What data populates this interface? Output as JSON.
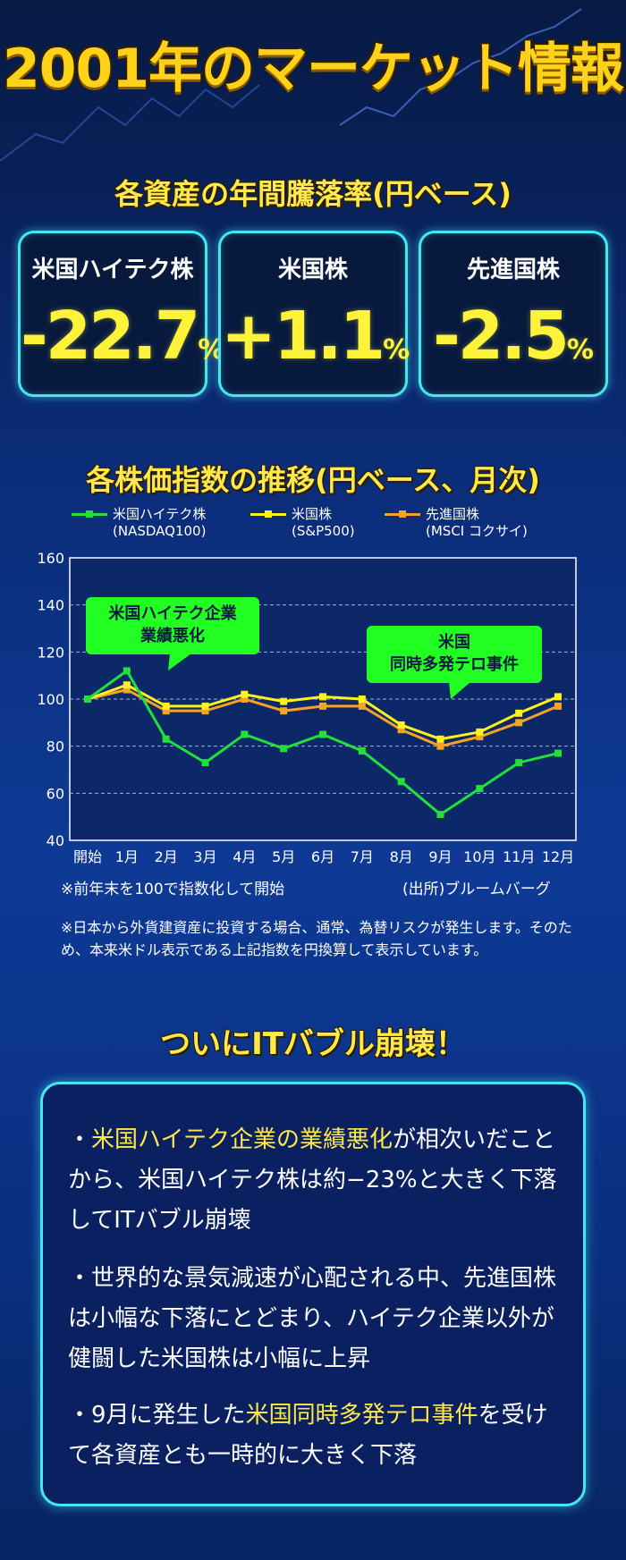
{
  "page": {
    "main_title": "2001年のマーケット情報",
    "section1_title": "各資産の年間騰落率(円ベース)",
    "section2_title": "各株価指数の推移(円ベース、月次)",
    "section3_title": "ついにITバブル崩壊！"
  },
  "cards": [
    {
      "label": "米国ハイテク株",
      "value": "-22.7",
      "unit": "%"
    },
    {
      "label": "米国株",
      "value": "+1.1",
      "unit": "%"
    },
    {
      "label": "先進国株",
      "value": "-2.5",
      "unit": "%"
    }
  ],
  "colors": {
    "hitech": "#22e03a",
    "us": "#fff21a",
    "developed": "#f5a323",
    "accent": "#45e6f0",
    "title": "#ffe94a"
  },
  "legend": [
    {
      "name": "米国ハイテク株",
      "sub": "(NASDAQ100)"
    },
    {
      "name": "米国株",
      "sub": "(S&P500)"
    },
    {
      "name": "先進国株",
      "sub": "(MSCI コクサイ)"
    }
  ],
  "chart_data": {
    "type": "line",
    "x": [
      "開始",
      "1月",
      "2月",
      "3月",
      "4月",
      "5月",
      "6月",
      "7月",
      "8月",
      "9月",
      "10月",
      "11月",
      "12月"
    ],
    "ylim": [
      40,
      160
    ],
    "yticks": [
      40,
      60,
      80,
      100,
      120,
      140,
      160
    ],
    "grid": true,
    "series": [
      {
        "name": "米国ハイテク株",
        "values": [
          100,
          112,
          83,
          73,
          85,
          79,
          85,
          78,
          65,
          51,
          62,
          73,
          77
        ]
      },
      {
        "name": "米国株",
        "values": [
          100,
          106,
          97,
          97,
          102,
          99,
          101,
          100,
          89,
          83,
          86,
          94,
          101
        ]
      },
      {
        "name": "先進国株",
        "values": [
          100,
          104,
          95,
          95,
          100,
          95,
          97,
          97,
          87,
          80,
          84,
          90,
          97
        ]
      }
    ],
    "annotations": [
      "米国ハイテク企業\n業績悪化",
      "米国\n同時多発テロ事件"
    ]
  },
  "notes": {
    "index_note": "※前年末を100で指数化して開始",
    "source": "(出所)ブルームバーグ",
    "fx_note": "※日本から外貨建資産に投資する場合、通常、為替リスクが発生します。そのため、本来米ドル表示である上記指数を円換算して表示しています。"
  },
  "bullets": [
    {
      "pre": "・",
      "hl": "米国ハイテク企業の業績悪化",
      "rest": "が相次いだことから、米国ハイテク株は約−23%と大きく下落してITバブル崩壊"
    },
    {
      "pre": "・",
      "hl": "",
      "rest": "世界的な景気減速が心配される中、先進国株は小幅な下落にとどまり、ハイテク企業以外が健闘した米国株は小幅に上昇"
    },
    {
      "pre": "・",
      "hl": "",
      "rest": "9月に発生した"
    },
    {
      "pre": "",
      "hl": "米国同時多発テロ事件",
      "rest": "を受けて各資産とも一時的に大きく下落"
    }
  ]
}
